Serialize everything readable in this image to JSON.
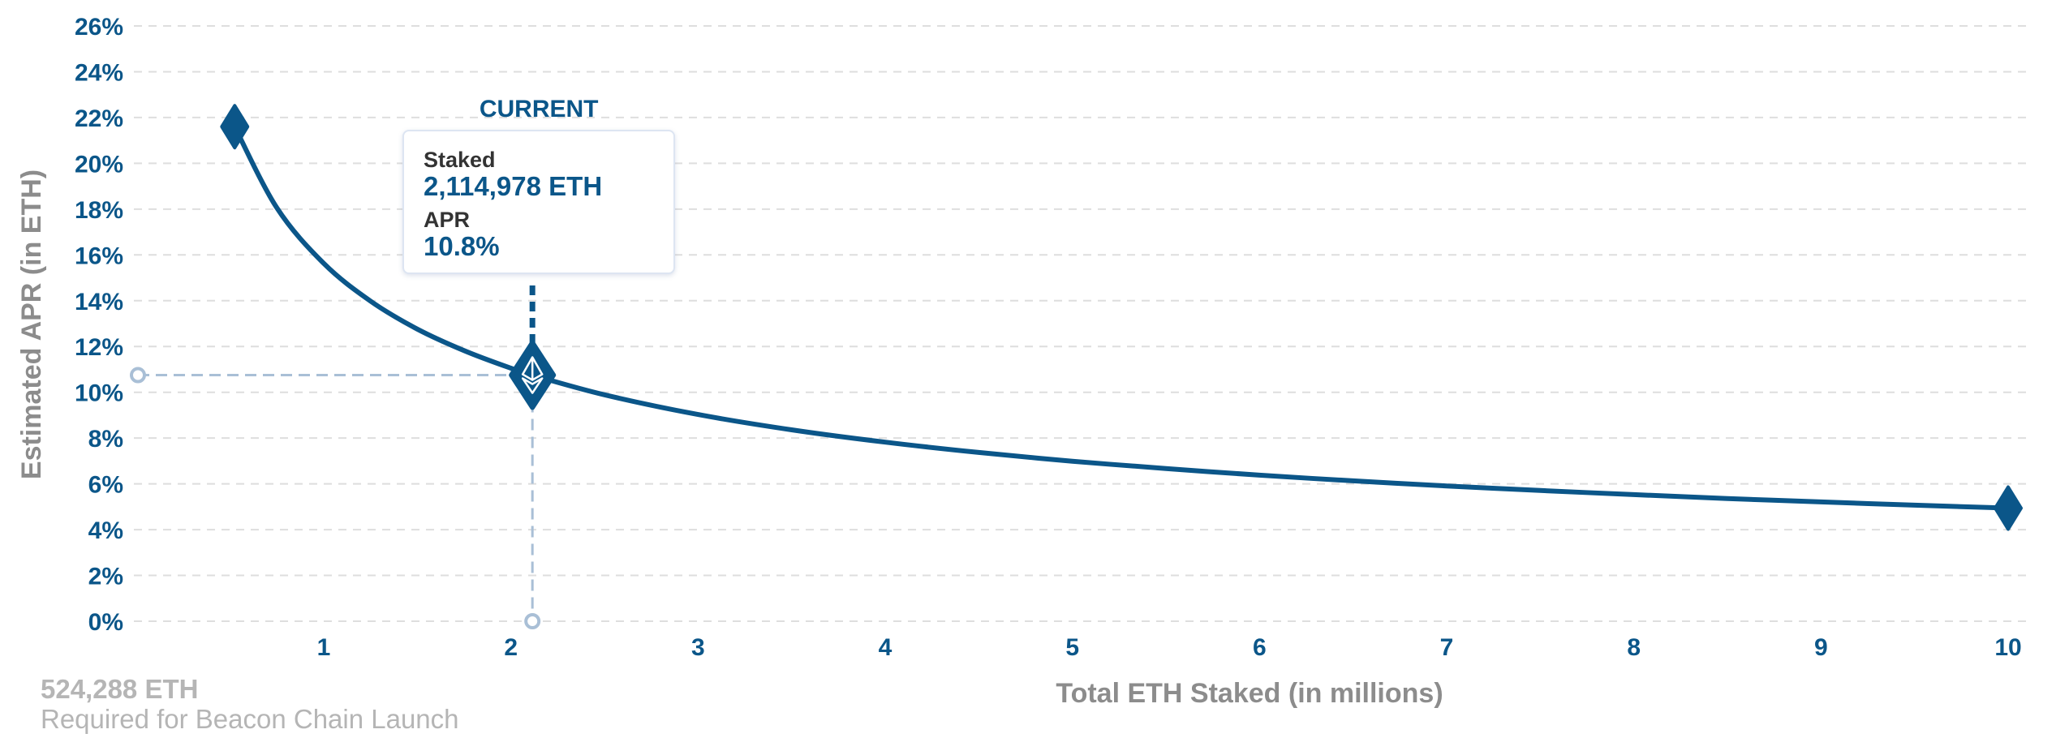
{
  "chart_data": {
    "type": "line",
    "title": "",
    "xlabel": "Total ETH Staked  (in millions)",
    "ylabel": "Estimated APR (in ETH)",
    "xlim": [
      0,
      10.2
    ],
    "ylim": [
      0,
      26
    ],
    "x_ticks": [
      "1",
      "2",
      "3",
      "4",
      "5",
      "6",
      "7",
      "8",
      "9",
      "10"
    ],
    "y_ticks": [
      "0%",
      "2%",
      "4%",
      "6%",
      "8%",
      "10%",
      "12%",
      "14%",
      "16%",
      "18%",
      "20%",
      "22%",
      "24%",
      "26%"
    ],
    "grid": true,
    "series": [
      {
        "x": [
          0.524288,
          0.75,
          1.0,
          1.25,
          1.5,
          1.75,
          2.0,
          2.114978,
          2.5,
          3.0,
          3.5,
          4.0,
          4.5,
          5.0,
          5.5,
          6.0,
          6.5,
          7.0,
          7.5,
          8.0,
          8.5,
          9.0,
          9.5,
          10.0
        ],
        "y": [
          21.6,
          18.05,
          15.63,
          13.98,
          12.76,
          11.82,
          11.05,
          10.75,
          9.89,
          9.03,
          8.36,
          7.82,
          7.37,
          6.99,
          6.67,
          6.38,
          6.13,
          5.91,
          5.71,
          5.53,
          5.36,
          5.21,
          5.07,
          4.94
        ]
      }
    ],
    "markers": [
      {
        "x": 0.524288,
        "y": 21.6
      },
      {
        "x": 10.0,
        "y": 4.94
      }
    ],
    "current": {
      "label": "CURRENT",
      "x": 2.114978,
      "y": 10.75
    },
    "colors": {
      "line": "#0b5689",
      "guide": "#a9bfd6",
      "grid": "#dedede",
      "axis_text": "#0b5689",
      "muted_text": "#8c8c8c"
    }
  },
  "tooltip": {
    "staked_label": "Staked",
    "staked_value": "2,114,978 ETH",
    "apr_label": "APR",
    "apr_value": "10.8%"
  },
  "footnote": {
    "value": "524,288 ETH",
    "caption": "Required for Beacon Chain Launch"
  },
  "icons": {
    "current_marker": "ethereum-diamond-icon"
  }
}
